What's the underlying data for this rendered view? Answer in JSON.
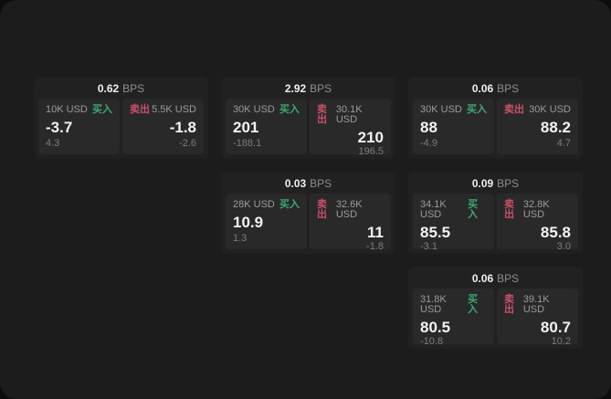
{
  "labels": {
    "buy": "买入",
    "sell": "卖出",
    "bps_unit": "BPS"
  },
  "colors": {
    "outside_background": "#0c0c0c",
    "window_background": "#1c1c1c",
    "card_background": "#212121",
    "tile_background": "#292929",
    "buy_green": "#3da873",
    "sell_red": "#c9506a",
    "value_white": "#f4f4f4",
    "label_gray": "#9c9c9c",
    "sub_gray": "#7d7d7d"
  },
  "cards": [
    {
      "bps": "0.62",
      "buy": {
        "amount": "10K USD",
        "value": "-3.7",
        "sub": "4.3"
      },
      "sell": {
        "amount": "5.5K USD",
        "value": "-1.8",
        "sub": "-2.6"
      }
    },
    {
      "bps": "2.92",
      "buy": {
        "amount": "30K USD",
        "value": "201",
        "sub": "-188.1"
      },
      "sell": {
        "amount": "30.1K USD",
        "value": "210",
        "sub": "196.5"
      }
    },
    {
      "bps": "0.06",
      "buy": {
        "amount": "30K USD",
        "value": "88",
        "sub": "-4.9"
      },
      "sell": {
        "amount": "30K USD",
        "value": "88.2",
        "sub": "4.7"
      }
    },
    {
      "bps": "0.03",
      "buy": {
        "amount": "28K USD",
        "value": "10.9",
        "sub": "1.3"
      },
      "sell": {
        "amount": "32.6K USD",
        "value": "11",
        "sub": "-1.8"
      }
    },
    {
      "bps": "0.09",
      "buy": {
        "amount": "34.1K USD",
        "value": "85.5",
        "sub": "-3.1"
      },
      "sell": {
        "amount": "32.8K USD",
        "value": "85.8",
        "sub": "3.0"
      }
    },
    {
      "bps": "0.06",
      "buy": {
        "amount": "31.8K USD",
        "value": "80.5",
        "sub": "-10.8"
      },
      "sell": {
        "amount": "39.1K USD",
        "value": "80.7",
        "sub": "10.2"
      }
    }
  ]
}
